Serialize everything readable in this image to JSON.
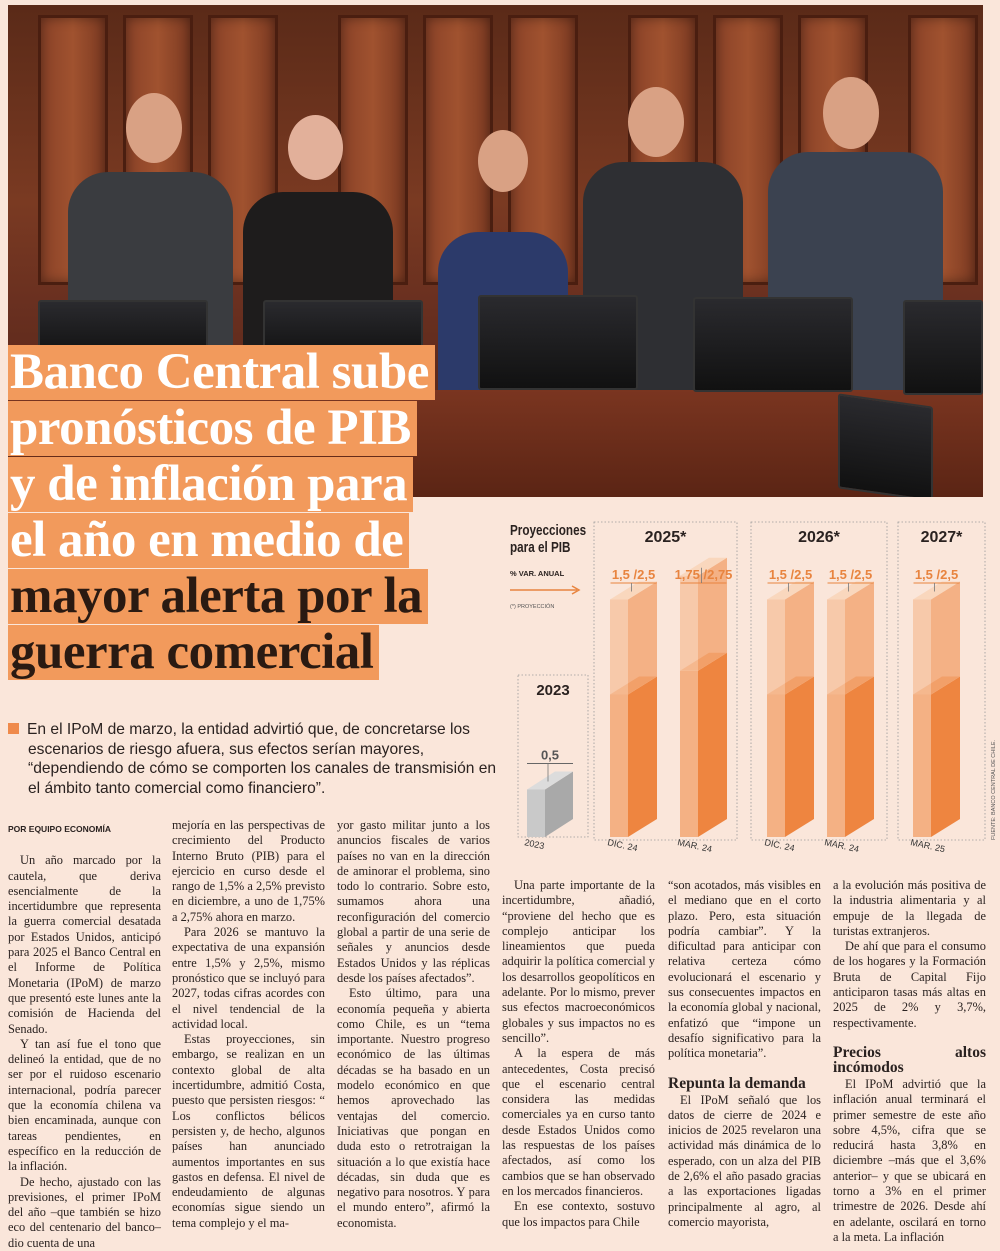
{
  "headline": {
    "lines": [
      "Banco Central sube",
      "pronósticos de PIB",
      "y de inflación para",
      "el año en medio de",
      "mayor alerta por la",
      "guerra comercial"
    ]
  },
  "deck": "En el IPoM de marzo, la entidad advirtió que, de concretarse los escenarios de riesgo afuera, sus efectos serían mayores, “dependiendo de cómo se comporten los canales de transmisión en el ámbito tanto comercial como financiero”.",
  "byline": "POR EQUIPO ECONOMÍA",
  "columns": [
    [
      "Un año marcado por la cautela, que deriva esencialmente de la incertidumbre que representa la guerra comercial desatada por Estados Unidos, anticipó para 2025 el Banco Central en el Informe de Política Monetaria (IPoM) de marzo que presentó este lunes ante la comisión de Hacienda del Senado.",
      "Y tan así fue el tono que delineó la entidad, que de no ser por el ruidoso escenario internacional, podría parecer que la economía chilena va bien encaminada, aunque con tareas pendientes, en específico en la reducción de la inflación.",
      "De hecho, ajustado con las previsiones, el primer IPoM del año –que también se hizo eco del centenario del banco– dio cuenta de una"
    ],
    [
      "mejoría en las perspectivas de crecimiento del Producto Interno Bruto (PIB) para el ejercicio en curso desde el rango de 1,5% a 2,5% previsto en diciembre, a uno de 1,75% a 2,75% ahora en marzo.",
      "Para 2026 se mantuvo la expectativa de una expansión entre 1,5% y 2,5%, mismo pronóstico que se incluyó para 2027, todas cifras acordes con el nivel tendencial de la actividad local.",
      "Estas proyecciones, sin embargo, se realizan en un contexto global de alta incertidumbre, admitió Costa, puesto que persisten riesgos: “ Los conflictos bélicos persisten y, de hecho, algunos países han anunciado aumentos importantes en sus gastos en defensa. El nivel de endeudamiento de algunas economías sigue siendo un tema complejo y el ma-"
    ],
    [
      "yor gasto militar junto a los anuncios fiscales de varios países no van en la dirección de aminorar el problema, sino todo lo contrario. Sobre esto, sumamos ahora una reconfiguración del comercio global a partir de una serie de señales y anuncios desde Estados Unidos y las réplicas desde los países afectados”.",
      "Esto último, para una economía pequeña y abierta como Chile, es un “tema importante. Nuestro progreso económico de las últimas décadas se ha basado en un modelo económico en que hemos aprovechado las ventajas del comercio. Iniciativas que pongan en duda esto o retrotraigan la situación a lo que existía hace décadas, sin duda que es negativo para nosotros. Y para el mundo entero”, afirmó la economista."
    ],
    [
      "Una parte importante de la incertidumbre, añadió, “proviene del hecho que es complejo anticipar los lineamientos que pueda adquirir la política comercial y los desarrollos geopolíticos en adelante. Por lo mismo, prever sus efectos macroeconómicos globales y sus impactos no es sencillo”.",
      "A la espera de más antecedentes, Costa precisó que el escenario central considera las medidas comerciales ya en curso tanto desde Estados Unidos como las respuestas de los países afectados, así como los cambios que se han observado en los mercados financieros.",
      "En ese contexto, sostuvo que los impactos para Chile"
    ],
    [
      "“son acotados, más visibles en el mediano que en el corto plazo. Pero, esta situación podría cambiar”. Y la dificultad para anticipar con relativa certeza cómo evolucionará el escenario y sus consecuentes impactos en la economía global y nacional, enfatizó que “impone un desafío significativo para la política monetaria”.",
      "El IPoM señaló que los datos de cierre de 2024 e inicios de 2025 revelaron una actividad más dinámica de lo esperado, con un alza del PIB de 2,6% el año pasado gracias a las exportaciones ligadas principalmente al agro, al comercio mayorista,"
    ],
    [
      "a la evolución más positiva de la industria alimentaria y al empuje de la llegada de turistas extranjeros.",
      "De ahí que para el consumo de los hogares y la Formación Bruta de Capital Fijo anticiparon tasas más altas en 2025 de 2% y 3,7%, respectivamente.",
      "El IPoM advirtió que la inflación anual terminará el primer semestre de este año sobre 4,5%, cifra que se reducirá hasta 3,8% en diciembre –más que el 3,6% anterior– y que se ubicará en torno a 3% en el primer trimestre de 2026. Desde ahí en adelante, oscilará en torno a la meta. La inflación"
    ]
  ],
  "subheads": {
    "demanda": "Repunta la demanda",
    "precios": "Precios altos incómodos"
  },
  "chart_data": {
    "type": "bar",
    "title": "Proyecciones para el PIB",
    "subtitle": "% VAR. ANUAL",
    "note": "(*) PROYECCIÓN",
    "source": "FUENTE: BANCO CENTRAL DE CHILE.",
    "groups": [
      {
        "label": "2023",
        "bars": [
          {
            "category": "2023",
            "low": 0.5,
            "high": 0.5,
            "text": "0,5"
          }
        ]
      },
      {
        "label": "2025*",
        "bars": [
          {
            "category": "DIC. 24",
            "low": 1.5,
            "high": 2.5,
            "text": "1,5 /2,5"
          },
          {
            "category": "MAR. 24",
            "low": 1.75,
            "high": 2.75,
            "text": "1,75 /2,75"
          }
        ]
      },
      {
        "label": "2026*",
        "bars": [
          {
            "category": "DIC. 24",
            "low": 1.5,
            "high": 2.5,
            "text": "1,5 /2,5"
          },
          {
            "category": "MAR. 24",
            "low": 1.5,
            "high": 2.5,
            "text": "1,5 /2,5"
          }
        ]
      },
      {
        "label": "2027*",
        "bars": [
          {
            "category": "MAR. 25",
            "low": 1.5,
            "high": 2.5,
            "text": "1,5 /2,5"
          }
        ]
      }
    ],
    "colors": {
      "front": "#f4b184",
      "side": "#ee8540",
      "actual": "#a9a9a9",
      "label": "#e8843f"
    }
  }
}
